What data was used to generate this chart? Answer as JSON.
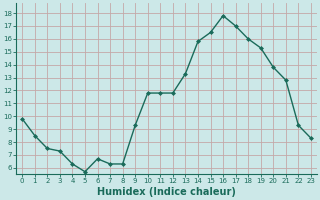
{
  "x": [
    0,
    1,
    2,
    3,
    4,
    5,
    6,
    7,
    8,
    9,
    10,
    11,
    12,
    13,
    14,
    15,
    16,
    17,
    18,
    19,
    20,
    21,
    22,
    23
  ],
  "y": [
    9.8,
    8.5,
    7.5,
    7.3,
    6.3,
    5.7,
    6.7,
    6.3,
    6.3,
    9.3,
    11.8,
    11.8,
    11.8,
    13.3,
    15.8,
    16.5,
    17.8,
    17.0,
    16.0,
    15.3,
    13.8,
    12.8,
    9.3,
    8.3
  ],
  "line_color": "#1a6b5a",
  "marker": "D",
  "marker_size": 2,
  "bg_color": "#cce8e8",
  "grid_color": "#c4a8a8",
  "xlabel": "Humidex (Indice chaleur)",
  "ylim": [
    5.5,
    18.8
  ],
  "xlim": [
    -0.5,
    23.5
  ],
  "yticks": [
    6,
    7,
    8,
    9,
    10,
    11,
    12,
    13,
    14,
    15,
    16,
    17,
    18
  ],
  "xticks": [
    0,
    1,
    2,
    3,
    4,
    5,
    6,
    7,
    8,
    9,
    10,
    11,
    12,
    13,
    14,
    15,
    16,
    17,
    18,
    19,
    20,
    21,
    22,
    23
  ],
  "font_color": "#1a6b5a",
  "tick_color": "#1a6b5a",
  "spine_color": "#1a6b5a",
  "xlabel_fontsize": 7,
  "tick_fontsize": 5.0,
  "linewidth": 1.0
}
